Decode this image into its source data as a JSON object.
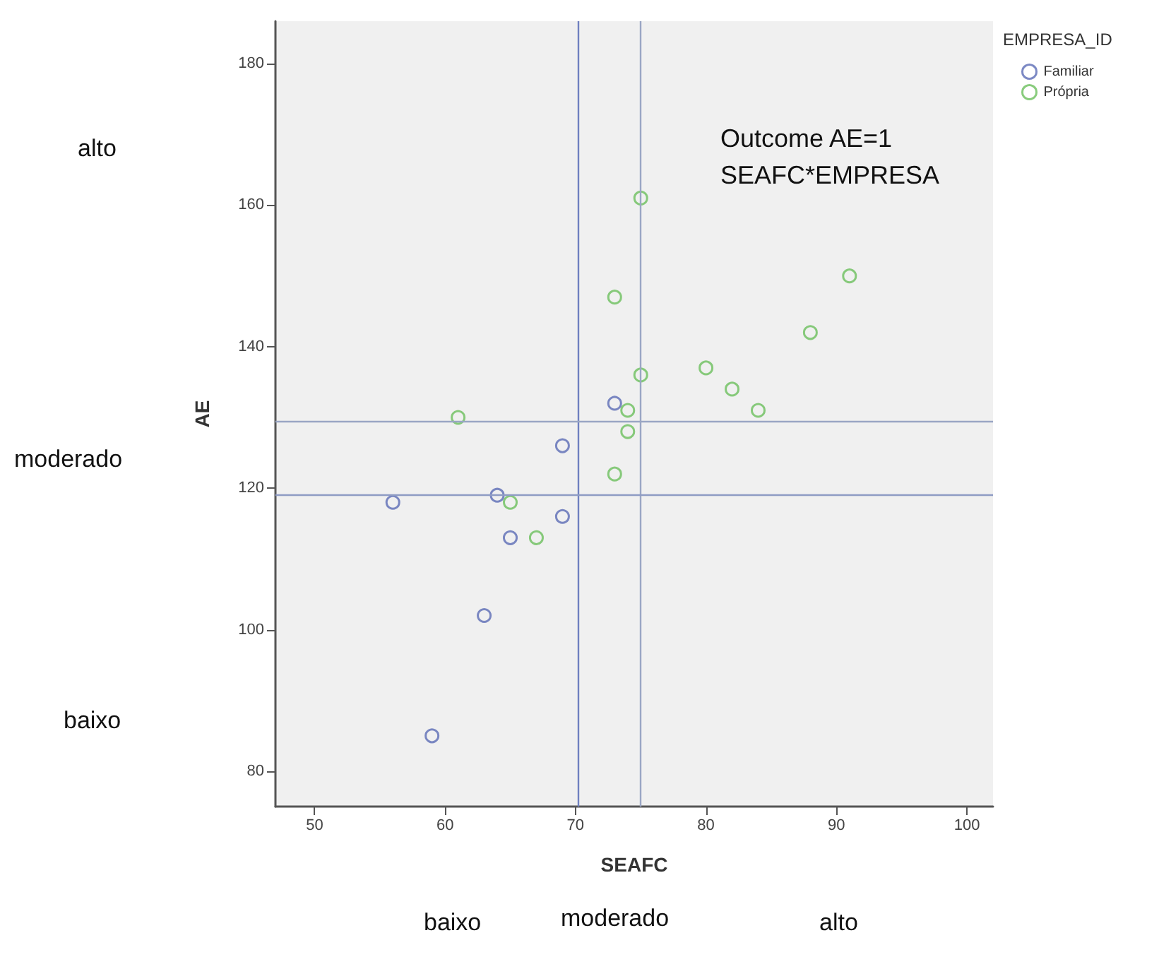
{
  "chart_data": {
    "type": "scatter",
    "xlabel": "SEAFC",
    "ylabel": "AE",
    "legend_title": "EMPRESA_ID",
    "series": [
      {
        "name": "Familiar",
        "color": "#5b6cb5",
        "x": [
          56,
          59,
          63,
          64,
          65,
          69,
          69,
          73
        ],
        "values": [
          118,
          85,
          102,
          119,
          113,
          126,
          116,
          132
        ]
      },
      {
        "name": "Própria",
        "color": "#6cbf5c",
        "x": [
          61,
          65,
          67,
          73,
          73,
          74,
          74,
          75,
          75,
          80,
          82,
          84,
          88,
          91
        ],
        "values": [
          130,
          118,
          113,
          122,
          147,
          128,
          131,
          161,
          136,
          137,
          134,
          131,
          142,
          150
        ]
      }
    ],
    "xlim": [
      47,
      102
    ],
    "xticks": [
      50,
      60,
      70,
      80,
      90,
      100
    ],
    "ylim": [
      75,
      186
    ],
    "yticks": [
      80,
      100,
      120,
      140,
      160,
      180
    ],
    "ref_lines": [
      {
        "axis": "x",
        "value": 70.2,
        "color": "#6f80c0"
      },
      {
        "axis": "x",
        "value": 75,
        "color": "#9aa6c4"
      },
      {
        "axis": "y",
        "value": 119,
        "color": "#8f9cc4"
      },
      {
        "axis": "y",
        "value": 129.5,
        "color": "#9aa6c4"
      }
    ],
    "annotations": [
      "Outcome AE=1\nSEAFC*EMPRESA",
      "alto",
      "moderado",
      "baixo",
      "baixo",
      "moderado",
      "alto"
    ],
    "marker": "circle",
    "grid": false,
    "legend": "top right"
  }
}
